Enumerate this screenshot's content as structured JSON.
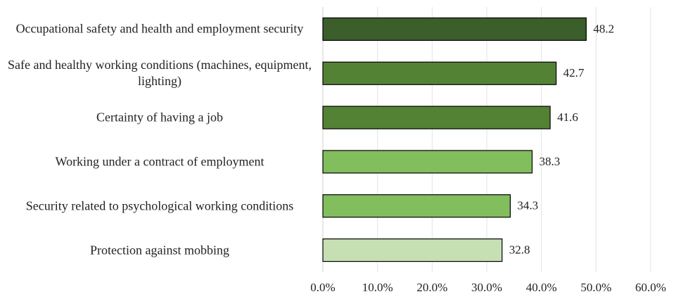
{
  "chart_data": {
    "type": "hbar",
    "categories": [
      "Occupational safety and health and employment security",
      "Safe and healthy working conditions (machines, equipment, lighting)",
      "Certainty of having a job",
      "Working under a contract of employment",
      "Security related to psychological working conditions",
      "Protection against mobbing"
    ],
    "values": [
      48.2,
      42.7,
      41.6,
      38.3,
      34.3,
      32.8
    ],
    "colors": [
      "#3b5e2b",
      "#548235",
      "#548235",
      "#82bd5e",
      "#82bd5e",
      "#c6e0b4"
    ],
    "xlim": [
      0,
      60
    ],
    "xticks": [
      {
        "value": 0,
        "label": "0.0%"
      },
      {
        "value": 10,
        "label": "10.0%"
      },
      {
        "value": 20,
        "label": "20.0%"
      },
      {
        "value": 30,
        "label": "30.0%"
      },
      {
        "value": 40,
        "label": "40.0%"
      },
      {
        "value": 50,
        "label": "50.0%"
      },
      {
        "value": 60,
        "label": "60.0%"
      }
    ],
    "grid": true
  }
}
